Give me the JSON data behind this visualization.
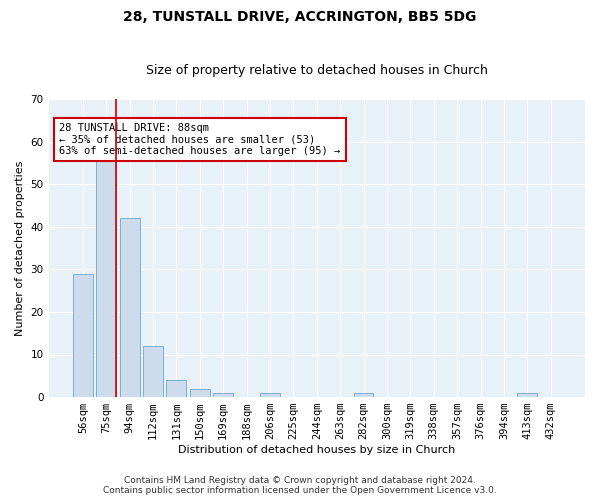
{
  "title1": "28, TUNSTALL DRIVE, ACCRINGTON, BB5 5DG",
  "title2": "Size of property relative to detached houses in Church",
  "xlabel": "Distribution of detached houses by size in Church",
  "ylabel": "Number of detached properties",
  "categories": [
    "56sqm",
    "75sqm",
    "94sqm",
    "112sqm",
    "131sqm",
    "150sqm",
    "169sqm",
    "188sqm",
    "206sqm",
    "225sqm",
    "244sqm",
    "263sqm",
    "282sqm",
    "300sqm",
    "319sqm",
    "338sqm",
    "357sqm",
    "376sqm",
    "394sqm",
    "413sqm",
    "432sqm"
  ],
  "values": [
    29,
    58,
    42,
    12,
    4,
    2,
    1,
    0,
    1,
    0,
    0,
    0,
    1,
    0,
    0,
    0,
    0,
    0,
    0,
    1,
    0
  ],
  "bar_color": "#ccdcec",
  "bar_edge_color": "#7bafd4",
  "vline_color": "#cc0000",
  "vline_x_index": 1,
  "ylim": [
    0,
    70
  ],
  "yticks": [
    0,
    10,
    20,
    30,
    40,
    50,
    60,
    70
  ],
  "annotation_text": "28 TUNSTALL DRIVE: 88sqm\n← 35% of detached houses are smaller (53)\n63% of semi-detached houses are larger (95) →",
  "annotation_box_color": "#cc0000",
  "footer_text": "Contains HM Land Registry data © Crown copyright and database right 2024.\nContains public sector information licensed under the Open Government Licence v3.0.",
  "background_color": "#e8f0f8",
  "grid_color": "#ffffff",
  "title1_fontsize": 10,
  "title2_fontsize": 9,
  "axis_label_fontsize": 8,
  "tick_fontsize": 7.5,
  "annotation_fontsize": 7.5,
  "footer_fontsize": 6.5
}
